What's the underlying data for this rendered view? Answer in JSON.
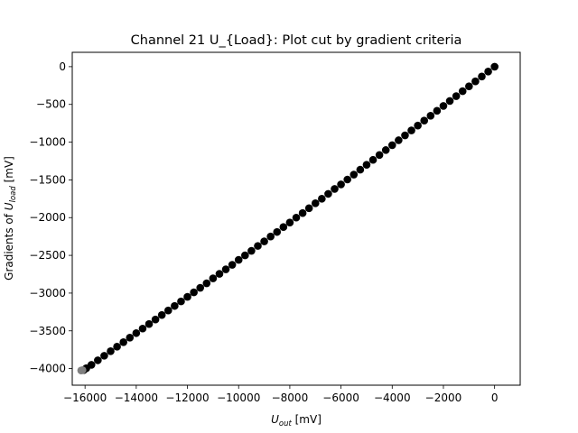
{
  "chart_data": {
    "type": "scatter",
    "title": "Channel 21 U_{Load}: Plot cut by gradient criteria",
    "xlabel": {
      "prefix": "U",
      "subscript": "out",
      "suffix": " [mV]"
    },
    "ylabel": {
      "prefix": "Gradients of ",
      "var": "U",
      "subscript": "load",
      "suffix": " [mV]"
    },
    "xlim": [
      -16500,
      1000
    ],
    "ylim": [
      -4220,
      190
    ],
    "xticks": [
      -16000,
      -14000,
      -12000,
      -10000,
      -8000,
      -6000,
      -4000,
      -2000,
      0
    ],
    "xtick_labels": [
      "−16000",
      "−14000",
      "−12000",
      "−10000",
      "−8000",
      "−6000",
      "−4000",
      "−2000",
      "0"
    ],
    "yticks": [
      0,
      -500,
      -1000,
      -1500,
      -2000,
      -2500,
      -3000,
      -3500,
      -4000
    ],
    "ytick_labels": [
      "0",
      "−500",
      "−1000",
      "−1500",
      "−2000",
      "−2500",
      "−3000",
      "−3500",
      "−4000"
    ],
    "grid": false,
    "series": [
      {
        "color": "#000000",
        "marker": "circle",
        "points": [
          [
            0,
            0
          ],
          [
            -250,
            -65
          ],
          [
            -500,
            -130
          ],
          [
            -750,
            -195
          ],
          [
            -1000,
            -260
          ],
          [
            -1250,
            -325
          ],
          [
            -1500,
            -390
          ],
          [
            -1750,
            -455
          ],
          [
            -2000,
            -520
          ],
          [
            -2250,
            -585
          ],
          [
            -2500,
            -650
          ],
          [
            -2750,
            -715
          ],
          [
            -3000,
            -780
          ],
          [
            -3250,
            -845
          ],
          [
            -3500,
            -910
          ],
          [
            -3750,
            -975
          ],
          [
            -4000,
            -1040
          ],
          [
            -4250,
            -1105
          ],
          [
            -4500,
            -1170
          ],
          [
            -4750,
            -1235
          ],
          [
            -5000,
            -1300
          ],
          [
            -5250,
            -1365
          ],
          [
            -5500,
            -1430
          ],
          [
            -5750,
            -1495
          ],
          [
            -6000,
            -1560
          ],
          [
            -6250,
            -1620
          ],
          [
            -6500,
            -1685
          ],
          [
            -6750,
            -1750
          ],
          [
            -7000,
            -1810
          ],
          [
            -7250,
            -1875
          ],
          [
            -7500,
            -1940
          ],
          [
            -7750,
            -2000
          ],
          [
            -8000,
            -2065
          ],
          [
            -8250,
            -2125
          ],
          [
            -8500,
            -2190
          ],
          [
            -8750,
            -2250
          ],
          [
            -9000,
            -2315
          ],
          [
            -9250,
            -2375
          ],
          [
            -9500,
            -2440
          ],
          [
            -9750,
            -2500
          ],
          [
            -10000,
            -2560
          ],
          [
            -10250,
            -2625
          ],
          [
            -10500,
            -2685
          ],
          [
            -10750,
            -2745
          ],
          [
            -11000,
            -2805
          ],
          [
            -11250,
            -2870
          ],
          [
            -11500,
            -2930
          ],
          [
            -11750,
            -2990
          ],
          [
            -12000,
            -3050
          ],
          [
            -12250,
            -3110
          ],
          [
            -12500,
            -3170
          ],
          [
            -12750,
            -3230
          ],
          [
            -13000,
            -3290
          ],
          [
            -13250,
            -3350
          ],
          [
            -13500,
            -3410
          ],
          [
            -13750,
            -3470
          ],
          [
            -14000,
            -3530
          ],
          [
            -14250,
            -3590
          ],
          [
            -14500,
            -3650
          ],
          [
            -14750,
            -3710
          ],
          [
            -15000,
            -3770
          ],
          [
            -15250,
            -3830
          ],
          [
            -15500,
            -3890
          ],
          [
            -15750,
            -3950
          ],
          [
            -15950,
            -3995
          ],
          [
            -16050,
            -4020
          ]
        ]
      },
      {
        "color": "#808080",
        "marker": "circle",
        "points": [
          [
            -16150,
            -4025
          ],
          [
            -16100,
            -4020
          ]
        ]
      }
    ]
  }
}
